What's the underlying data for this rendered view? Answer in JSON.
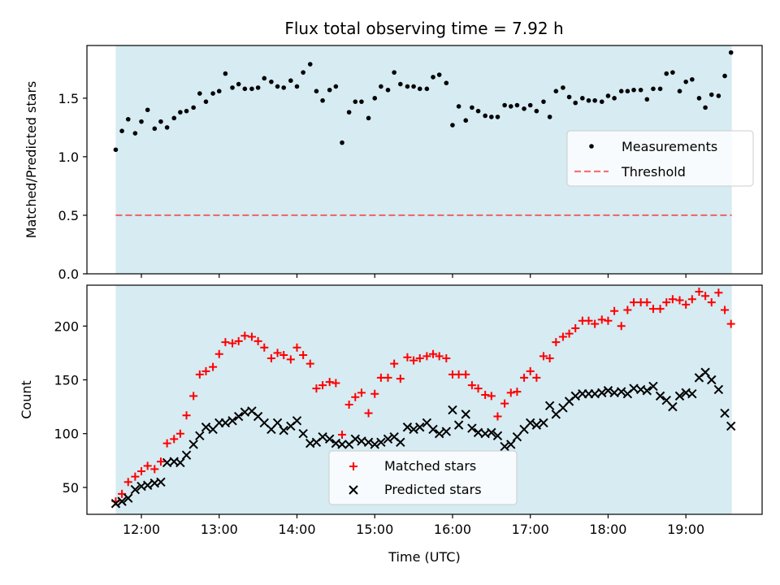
{
  "title": "Flux total observing time = 7.92 h",
  "colors": {
    "background_band": "#add8e6",
    "measurement": "#000000",
    "threshold": "#ff0000",
    "matched": "#ff0000",
    "predicted": "#000000"
  },
  "chart_data": [
    {
      "type": "scatter",
      "ylabel": "Matched/Predicted stars",
      "ylim": [
        0,
        1.95
      ],
      "yticks": [
        "0.0",
        "0.5",
        "1.0",
        "1.5"
      ],
      "xlim_hours": [
        11.3,
        19.98
      ],
      "shaded_span_hours": [
        11.67,
        19.59
      ],
      "legend": {
        "position": "right",
        "entries": [
          "Measurements",
          "Threshold"
        ]
      },
      "threshold": 0.5,
      "series": [
        {
          "name": "Measurements",
          "marker": "dot",
          "x": [
            11.67,
            11.75,
            11.83,
            11.92,
            12.0,
            12.08,
            12.17,
            12.25,
            12.33,
            12.42,
            12.5,
            12.58,
            12.67,
            12.75,
            12.83,
            12.92,
            13.0,
            13.08,
            13.17,
            13.25,
            13.33,
            13.42,
            13.5,
            13.58,
            13.67,
            13.75,
            13.83,
            13.92,
            14.0,
            14.08,
            14.17,
            14.25,
            14.33,
            14.42,
            14.5,
            14.58,
            14.67,
            14.75,
            14.83,
            14.92,
            15.0,
            15.08,
            15.17,
            15.25,
            15.33,
            15.42,
            15.5,
            15.58,
            15.67,
            15.75,
            15.83,
            15.92,
            16.0,
            16.08,
            16.17,
            16.25,
            16.33,
            16.42,
            16.5,
            16.58,
            16.67,
            16.75,
            16.83,
            16.92,
            17.0,
            17.08,
            17.17,
            17.25,
            17.33,
            17.42,
            17.5,
            17.58,
            17.67,
            17.75,
            17.83,
            17.92,
            18.0,
            18.08,
            18.17,
            18.25,
            18.33,
            18.42,
            18.5,
            18.58,
            18.67,
            18.75,
            18.83,
            18.92,
            19.0,
            19.08,
            19.17,
            19.25,
            19.33,
            19.42,
            19.5,
            19.58
          ],
          "y": [
            1.06,
            1.22,
            1.32,
            1.2,
            1.3,
            1.4,
            1.24,
            1.3,
            1.25,
            1.33,
            1.38,
            1.39,
            1.42,
            1.54,
            1.47,
            1.54,
            1.56,
            1.71,
            1.59,
            1.62,
            1.58,
            1.58,
            1.59,
            1.67,
            1.64,
            1.6,
            1.59,
            1.65,
            1.6,
            1.72,
            1.79,
            1.56,
            1.48,
            1.57,
            1.6,
            1.12,
            1.38,
            1.47,
            1.47,
            1.33,
            1.5,
            1.6,
            1.57,
            1.72,
            1.62,
            1.6,
            1.6,
            1.58,
            1.58,
            1.68,
            1.7,
            1.63,
            1.27,
            1.43,
            1.31,
            1.42,
            1.39,
            1.35,
            1.34,
            1.34,
            1.44,
            1.43,
            1.44,
            1.41,
            1.44,
            1.39,
            1.47,
            1.34,
            1.56,
            1.59,
            1.51,
            1.46,
            1.5,
            1.48,
            1.48,
            1.47,
            1.52,
            1.5,
            1.56,
            1.56,
            1.57,
            1.57,
            1.49,
            1.58,
            1.58,
            1.71,
            1.72,
            1.56,
            1.64,
            1.66,
            1.5,
            1.42,
            1.53,
            1.52,
            1.69,
            1.89
          ]
        }
      ]
    },
    {
      "type": "scatter",
      "xlabel": "Time (UTC)",
      "ylabel": "Count",
      "ylim": [
        25,
        238
      ],
      "yticks": [
        "50",
        "100",
        "150",
        "200"
      ],
      "xticks": [
        "12:00",
        "13:00",
        "14:00",
        "15:00",
        "16:00",
        "17:00",
        "18:00",
        "19:00"
      ],
      "xlim_hours": [
        11.3,
        19.98
      ],
      "shaded_span_hours": [
        11.67,
        19.59
      ],
      "legend": {
        "position": "bottom-center",
        "entries": [
          "Matched stars",
          "Predicted stars"
        ]
      },
      "series": [
        {
          "name": "Matched stars",
          "marker": "plus",
          "x": [
            11.67,
            11.75,
            11.83,
            11.92,
            12.0,
            12.08,
            12.17,
            12.25,
            12.33,
            12.42,
            12.5,
            12.58,
            12.67,
            12.75,
            12.83,
            12.92,
            13.0,
            13.08,
            13.17,
            13.25,
            13.33,
            13.42,
            13.5,
            13.58,
            13.67,
            13.75,
            13.83,
            13.92,
            14.0,
            14.08,
            14.17,
            14.25,
            14.33,
            14.42,
            14.5,
            14.58,
            14.67,
            14.75,
            14.83,
            14.92,
            15.0,
            15.08,
            15.17,
            15.25,
            15.33,
            15.42,
            15.5,
            15.58,
            15.67,
            15.75,
            15.83,
            15.92,
            16.0,
            16.08,
            16.17,
            16.25,
            16.33,
            16.42,
            16.5,
            16.58,
            16.67,
            16.75,
            16.83,
            16.92,
            17.0,
            17.08,
            17.17,
            17.25,
            17.33,
            17.42,
            17.5,
            17.58,
            17.67,
            17.75,
            17.83,
            17.92,
            18.0,
            18.08,
            18.17,
            18.25,
            18.33,
            18.42,
            18.5,
            18.58,
            18.67,
            18.75,
            18.83,
            18.92,
            19.0,
            19.08,
            19.17,
            19.25,
            19.33,
            19.42,
            19.5,
            19.58
          ],
          "y": [
            37,
            44,
            55,
            60,
            65,
            70,
            67,
            74,
            91,
            95,
            100,
            117,
            135,
            155,
            158,
            162,
            174,
            185,
            184,
            186,
            191,
            190,
            186,
            180,
            170,
            175,
            173,
            169,
            180,
            173,
            165,
            142,
            145,
            148,
            147,
            99,
            127,
            134,
            138,
            119,
            137,
            152,
            152,
            165,
            151,
            171,
            168,
            170,
            172,
            174,
            172,
            170,
            155,
            155,
            155,
            145,
            142,
            136,
            135,
            116,
            128,
            138,
            139,
            152,
            158,
            152,
            172,
            170,
            185,
            190,
            193,
            198,
            205,
            205,
            202,
            206,
            205,
            214,
            200,
            215,
            222,
            222,
            222,
            216,
            216,
            222,
            225,
            224,
            220,
            225,
            232,
            228,
            222,
            231,
            215,
            202
          ]
        },
        {
          "name": "Predicted stars",
          "marker": "x",
          "x": [
            11.67,
            11.75,
            11.83,
            11.92,
            12.0,
            12.08,
            12.17,
            12.25,
            12.33,
            12.42,
            12.5,
            12.58,
            12.67,
            12.75,
            12.83,
            12.92,
            13.0,
            13.08,
            13.17,
            13.25,
            13.33,
            13.42,
            13.5,
            13.58,
            13.67,
            13.75,
            13.83,
            13.92,
            14.0,
            14.08,
            14.17,
            14.25,
            14.33,
            14.42,
            14.5,
            14.58,
            14.67,
            14.75,
            14.83,
            14.92,
            15.0,
            15.08,
            15.17,
            15.25,
            15.33,
            15.42,
            15.5,
            15.58,
            15.67,
            15.75,
            15.83,
            15.92,
            16.0,
            16.08,
            16.17,
            16.25,
            16.33,
            16.42,
            16.5,
            16.58,
            16.67,
            16.75,
            16.83,
            16.92,
            17.0,
            17.08,
            17.17,
            17.25,
            17.33,
            17.42,
            17.5,
            17.58,
            17.67,
            17.75,
            17.83,
            17.92,
            18.0,
            18.08,
            18.17,
            18.25,
            18.33,
            18.42,
            18.5,
            18.58,
            18.67,
            18.75,
            18.83,
            18.92,
            19.0,
            19.08,
            19.17,
            19.25,
            19.33,
            19.42,
            19.5,
            19.58
          ],
          "y": [
            35,
            37,
            40,
            48,
            51,
            52,
            54,
            55,
            73,
            74,
            73,
            80,
            90,
            98,
            106,
            104,
            110,
            110,
            112,
            116,
            120,
            121,
            116,
            110,
            104,
            110,
            103,
            107,
            112,
            100,
            91,
            92,
            97,
            95,
            91,
            90,
            90,
            95,
            93,
            92,
            90,
            92,
            95,
            97,
            92,
            106,
            104,
            106,
            110,
            104,
            100,
            102,
            122,
            108,
            118,
            105,
            101,
            100,
            101,
            98,
            88,
            90,
            97,
            104,
            110,
            108,
            110,
            126,
            118,
            124,
            130,
            135,
            137,
            137,
            137,
            138,
            140,
            138,
            139,
            137,
            142,
            141,
            140,
            144,
            135,
            131,
            125,
            135,
            138,
            137,
            152,
            157,
            150,
            141,
            119,
            107
          ]
        }
      ]
    }
  ]
}
